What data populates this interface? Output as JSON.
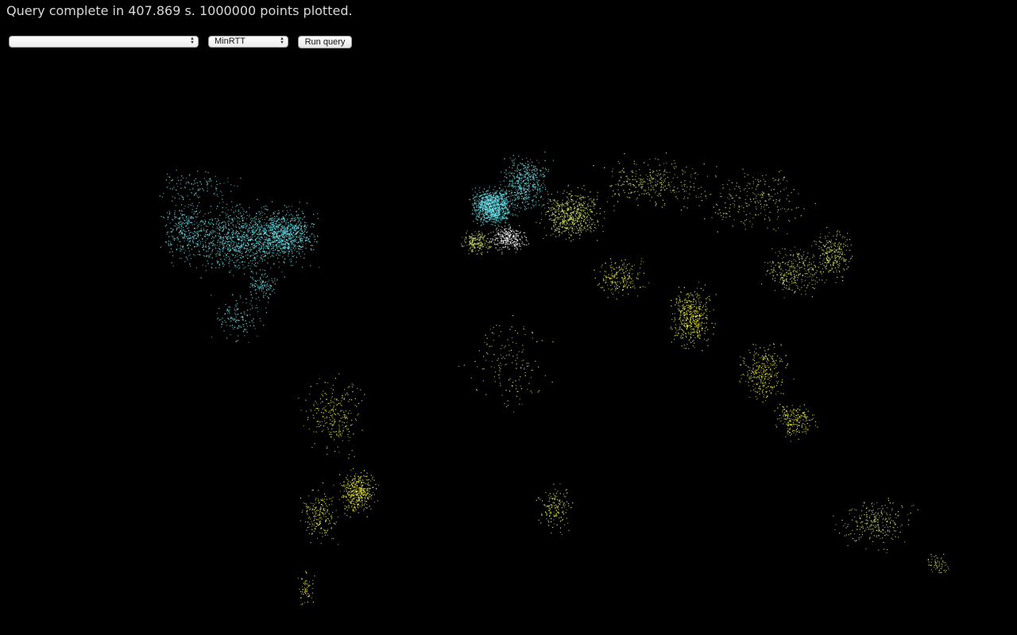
{
  "status": {
    "message": "Query complete in 407.869 s. 1000000 points plotted."
  },
  "controls": {
    "dataset_select": {
      "selected": ""
    },
    "metric_select": {
      "selected": "MinRTT"
    },
    "run_button": {
      "label": "Run query"
    }
  },
  "map": {
    "kind": "world scatter map of measurement points",
    "colors": {
      "background": "#000000",
      "low": "#6ee8f2",
      "mid": "#d9e86a",
      "high": "#f3f33a",
      "hotspot": "#ffffff"
    }
  }
}
